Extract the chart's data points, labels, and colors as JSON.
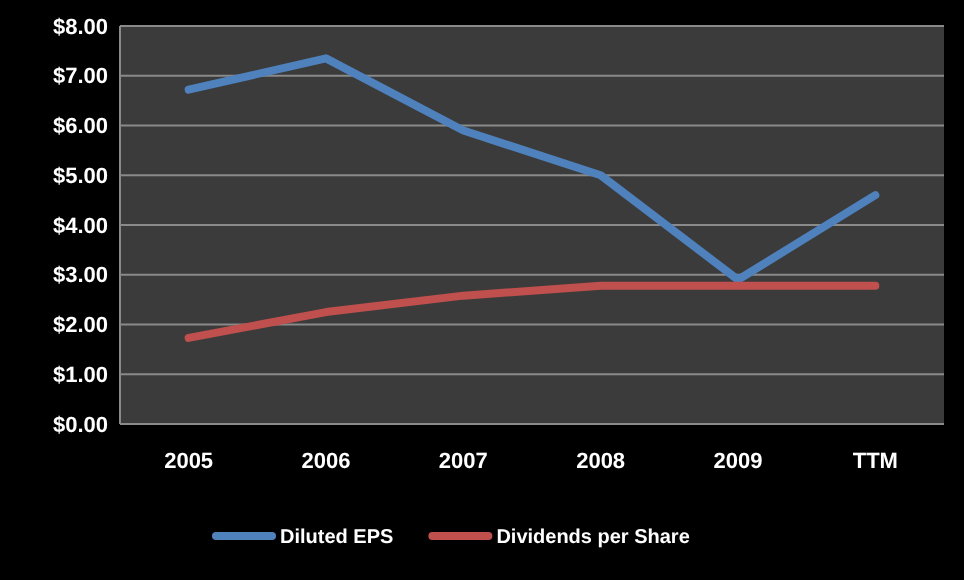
{
  "chart_data": {
    "type": "line",
    "categories": [
      "2005",
      "2006",
      "2007",
      "2008",
      "2009",
      "TTM"
    ],
    "series": [
      {
        "name": "Diluted EPS",
        "color": "#4f81bd",
        "values": [
          6.72,
          7.35,
          5.9,
          5.0,
          2.9,
          4.6
        ]
      },
      {
        "name": "Dividends per Share",
        "color": "#c0504d",
        "values": [
          1.73,
          2.25,
          2.58,
          2.78,
          2.78,
          2.78
        ]
      }
    ],
    "ylim": [
      0,
      8
    ],
    "yticks": [
      {
        "value": 0,
        "label": "$0.00"
      },
      {
        "value": 1,
        "label": "$1.00"
      },
      {
        "value": 2,
        "label": "$2.00"
      },
      {
        "value": 3,
        "label": "$3.00"
      },
      {
        "value": 4,
        "label": "$4.00"
      },
      {
        "value": 5,
        "label": "$5.00"
      },
      {
        "value": 6,
        "label": "$6.00"
      },
      {
        "value": 7,
        "label": "$7.00"
      },
      {
        "value": 8,
        "label": "$8.00"
      }
    ],
    "grid": "y",
    "legend": "bottom",
    "marker": "none",
    "line_style": "solid"
  }
}
